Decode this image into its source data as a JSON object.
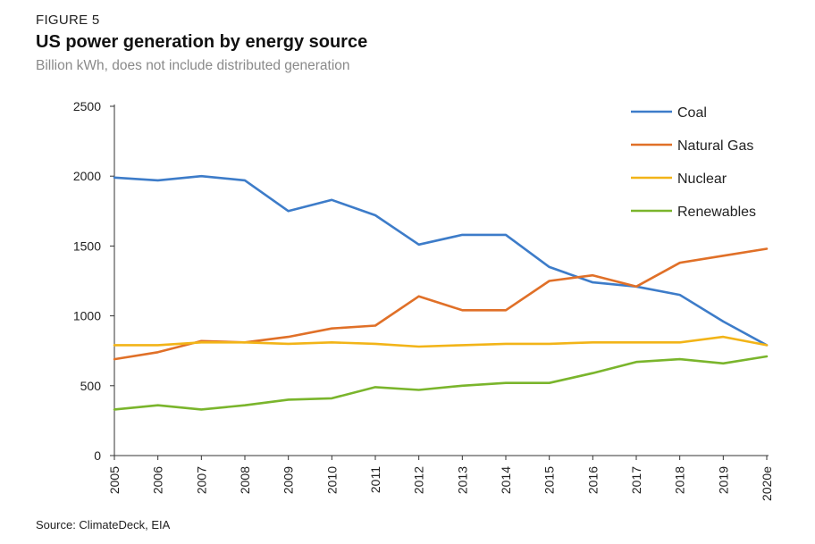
{
  "figure_label": "FIGURE 5",
  "title": "US power generation by energy source",
  "subtitle": "Billion kWh, does not include distributed generation",
  "source": "Source: ClimateDeck, EIA",
  "chart_data": {
    "type": "line",
    "categories": [
      "2005",
      "2006",
      "2007",
      "2008",
      "2009",
      "2010",
      "2011",
      "2012",
      "2013",
      "2014",
      "2015",
      "2016",
      "2017",
      "2018",
      "2019",
      "2020e"
    ],
    "ylim": [
      0,
      2500
    ],
    "yticks": [
      0,
      500,
      1000,
      1500,
      2000,
      2500
    ],
    "grid": false,
    "legend_position": "top-right",
    "series": [
      {
        "name": "Coal",
        "color": "#3d7cc9",
        "values": [
          1990,
          1970,
          2000,
          1970,
          1750,
          1830,
          1720,
          1510,
          1580,
          1580,
          1350,
          1240,
          1210,
          1150,
          960,
          790
        ]
      },
      {
        "name": "Natural Gas",
        "color": "#e07028",
        "values": [
          690,
          740,
          820,
          810,
          850,
          910,
          930,
          1140,
          1040,
          1040,
          1250,
          1290,
          1210,
          1380,
          1430,
          1480
        ]
      },
      {
        "name": "Nuclear",
        "color": "#f2b418",
        "values": [
          790,
          790,
          810,
          810,
          800,
          810,
          800,
          780,
          790,
          800,
          800,
          810,
          810,
          810,
          850,
          790
        ]
      },
      {
        "name": "Renewables",
        "color": "#7ab52c",
        "values": [
          330,
          360,
          330,
          360,
          400,
          410,
          490,
          470,
          500,
          520,
          520,
          590,
          670,
          690,
          660,
          710
        ]
      }
    ]
  }
}
